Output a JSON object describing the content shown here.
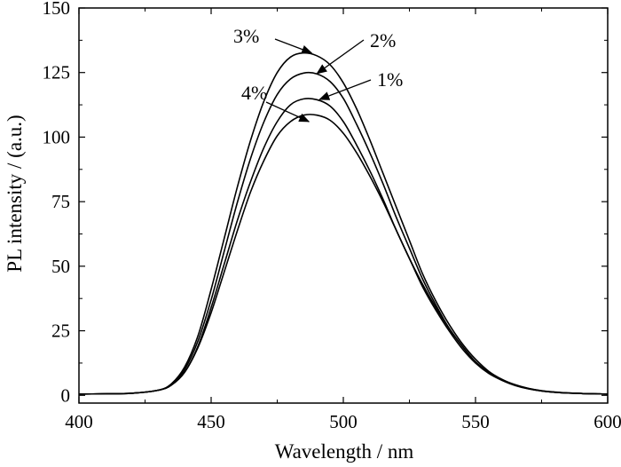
{
  "chart_data": {
    "type": "line",
    "title": "",
    "xlabel": "Wavelength / nm",
    "ylabel": "PL intensity / (a.u.)",
    "xlim": [
      400,
      600
    ],
    "ylim": [
      -3,
      150
    ],
    "xticks": [
      400,
      450,
      500,
      550,
      600
    ],
    "yticks": [
      0,
      25,
      50,
      75,
      100,
      125,
      150
    ],
    "grid": false,
    "legend": "none",
    "line_color": "#000000",
    "x": [
      400,
      410,
      420,
      430,
      435,
      440,
      445,
      450,
      455,
      460,
      465,
      470,
      475,
      480,
      485,
      490,
      495,
      500,
      505,
      510,
      515,
      520,
      525,
      530,
      535,
      540,
      545,
      550,
      555,
      560,
      565,
      570,
      575,
      580,
      585,
      590,
      595,
      600
    ],
    "series": [
      {
        "name": "1%",
        "values": [
          0.5,
          0.6,
          0.8,
          2,
          4,
          9,
          19,
          34,
          51,
          68,
          83,
          96,
          106,
          112.5,
          114.8,
          114.5,
          112,
          106,
          97,
          87,
          76,
          64,
          53,
          42,
          33,
          25,
          18,
          12.5,
          8.5,
          5.8,
          3.8,
          2.5,
          1.7,
          1.2,
          0.9,
          0.7,
          0.6,
          0.5
        ]
      },
      {
        "name": "2%",
        "values": [
          0.5,
          0.6,
          0.8,
          2,
          4,
          10,
          21,
          37,
          56,
          75,
          92,
          106,
          116.5,
          122.5,
          124.8,
          124.5,
          121.5,
          115,
          105,
          94,
          82,
          69,
          57,
          45,
          35,
          26,
          19,
          13,
          8.8,
          5.9,
          3.9,
          2.6,
          1.7,
          1.2,
          0.9,
          0.7,
          0.6,
          0.5
        ]
      },
      {
        "name": "3%",
        "values": [
          0.5,
          0.6,
          0.8,
          2,
          4.5,
          11,
          23,
          41,
          61,
          81,
          99,
          114,
          125,
          131,
          132.6,
          131.5,
          128,
          121,
          111,
          99,
          86,
          73,
          60,
          47,
          36.5,
          27.5,
          20,
          14,
          9.3,
          6.2,
          4.1,
          2.7,
          1.8,
          1.3,
          0.9,
          0.7,
          0.6,
          0.5
        ]
      },
      {
        "name": "4%",
        "values": [
          0.5,
          0.6,
          0.8,
          2,
          4,
          9,
          18.5,
          32,
          48,
          64,
          79,
          91,
          100.5,
          106,
          108.5,
          108.5,
          106.5,
          101.5,
          94,
          85,
          75,
          64,
          53,
          43,
          34,
          26,
          19,
          13,
          8.8,
          5.9,
          3.9,
          2.6,
          1.7,
          1.2,
          0.9,
          0.7,
          0.6,
          0.5
        ]
      }
    ],
    "annotations": [
      {
        "text": "3%",
        "target": [
          488,
          132.6
        ]
      },
      {
        "text": "2%",
        "target": [
          490,
          124.6
        ]
      },
      {
        "text": "1%",
        "target": [
          491,
          114.6
        ]
      },
      {
        "text": "4%",
        "target": [
          487,
          106
        ]
      }
    ]
  }
}
